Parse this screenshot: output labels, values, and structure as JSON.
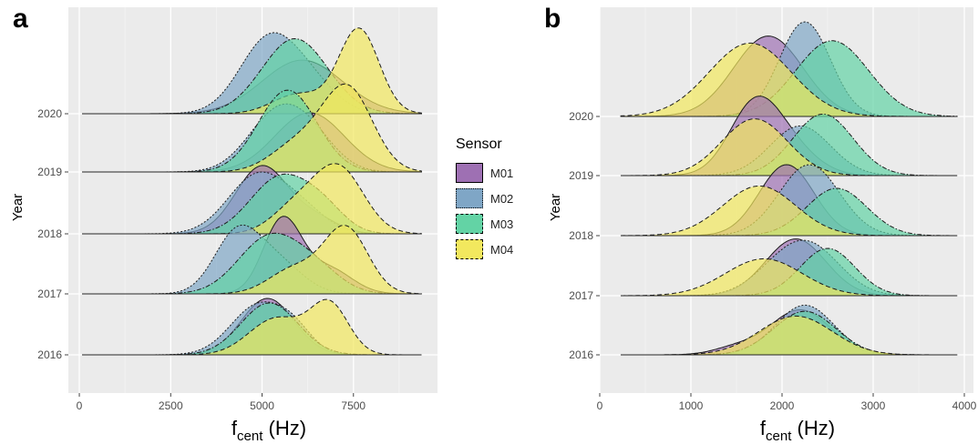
{
  "figure": {
    "panel_a_label": "a",
    "panel_b_label": "b"
  },
  "legend": {
    "title": "Sensor",
    "items": [
      {
        "label": "M01",
        "color": "#9E70B3",
        "dash": "solid"
      },
      {
        "label": "M02",
        "color": "#7FA6C6",
        "dash": "dotted"
      },
      {
        "label": "M03",
        "color": "#63D3A5",
        "dash": "dash-dot"
      },
      {
        "label": "M04",
        "color": "#F2E85E",
        "dash": "dashed"
      }
    ]
  },
  "chart_data": [
    {
      "type": "area",
      "subtype": "ridgeline",
      "panel": "a",
      "xlabel_main": "f",
      "xlabel_sub": "cent",
      "xlabel_unit": " (Hz)",
      "ylabel": "Year",
      "xlim": [
        -300,
        9800
      ],
      "xticks": [
        0,
        2500,
        5000,
        7500
      ],
      "years": [
        "2016",
        "2017",
        "2018",
        "2019",
        "2020"
      ],
      "grid": true,
      "colors": {
        "M01": "#9E70B3",
        "M02": "#7FA6C6",
        "M03": "#63D3A5",
        "M04": "#F2E85E"
      },
      "series": [
        {
          "year": "2016",
          "sensor": "M01",
          "peaks": [
            [
              5150,
              720,
              1
            ]
          ]
        },
        {
          "year": "2016",
          "sensor": "M02",
          "peaks": [
            [
              4900,
              750,
              0.88
            ],
            [
              5900,
              500,
              0.32
            ]
          ]
        },
        {
          "year": "2016",
          "sensor": "M03",
          "peaks": [
            [
              5200,
              780,
              0.92
            ]
          ]
        },
        {
          "year": "2016",
          "sensor": "M04",
          "peaks": [
            [
              6850,
              520,
              0.87
            ],
            [
              5400,
              750,
              0.65
            ]
          ]
        },
        {
          "year": "2017",
          "sensor": "M01",
          "peaks": [
            [
              5550,
              520,
              1.3
            ],
            [
              6800,
              650,
              0.45
            ]
          ]
        },
        {
          "year": "2017",
          "sensor": "M02",
          "peaks": [
            [
              4300,
              620,
              1.03
            ],
            [
              5400,
              700,
              0.55
            ]
          ]
        },
        {
          "year": "2017",
          "sensor": "M03",
          "peaks": [
            [
              5200,
              850,
              1.0
            ],
            [
              6500,
              700,
              0.35
            ]
          ]
        },
        {
          "year": "2017",
          "sensor": "M04",
          "peaks": [
            [
              7300,
              600,
              1.15
            ],
            [
              5900,
              700,
              0.45
            ]
          ]
        },
        {
          "year": "2018",
          "sensor": "M01",
          "peaks": [
            [
              5000,
              720,
              1.2
            ],
            [
              6500,
              600,
              0.25
            ]
          ]
        },
        {
          "year": "2018",
          "sensor": "M02",
          "peaks": [
            [
              4900,
              820,
              1.05
            ],
            [
              6200,
              650,
              0.3
            ]
          ]
        },
        {
          "year": "2018",
          "sensor": "M03",
          "peaks": [
            [
              5500,
              820,
              1.0
            ],
            [
              6700,
              600,
              0.35
            ]
          ]
        },
        {
          "year": "2018",
          "sensor": "M04",
          "peaks": [
            [
              7100,
              680,
              1.15
            ],
            [
              5900,
              650,
              0.45
            ]
          ]
        },
        {
          "year": "2019",
          "sensor": "M01",
          "peaks": [
            [
              6300,
              950,
              1.05
            ]
          ]
        },
        {
          "year": "2019",
          "sensor": "M02",
          "peaks": [
            [
              5400,
              800,
              1.0
            ],
            [
              6400,
              700,
              0.45
            ]
          ]
        },
        {
          "year": "2019",
          "sensor": "M03",
          "peaks": [
            [
              5700,
              800,
              1.45
            ]
          ]
        },
        {
          "year": "2019",
          "sensor": "M04",
          "peaks": [
            [
              7350,
              680,
              1.45
            ],
            [
              6000,
              750,
              0.5
            ]
          ]
        },
        {
          "year": "2020",
          "sensor": "M01",
          "peaks": [
            [
              6100,
              1100,
              0.95
            ]
          ]
        },
        {
          "year": "2020",
          "sensor": "M02",
          "peaks": [
            [
              5200,
              800,
              1.33
            ],
            [
              6400,
              700,
              0.4
            ]
          ]
        },
        {
          "year": "2020",
          "sensor": "M03",
          "peaks": [
            [
              5900,
              900,
              1.33
            ]
          ]
        },
        {
          "year": "2020",
          "sensor": "M04",
          "peaks": [
            [
              7650,
              550,
              1.5
            ],
            [
              6000,
              700,
              0.35
            ]
          ]
        }
      ]
    },
    {
      "type": "area",
      "subtype": "ridgeline",
      "panel": "b",
      "xlabel_main": "f",
      "xlabel_sub": "cent",
      "xlabel_unit": " (Hz)",
      "ylabel": "Year",
      "xlim": [
        0,
        4100
      ],
      "xticks": [
        0,
        1000,
        2000,
        3000,
        4000
      ],
      "years": [
        "2016",
        "2017",
        "2018",
        "2019",
        "2020"
      ],
      "grid": true,
      "colors": {
        "M01": "#9E70B3",
        "M02": "#7FA6C6",
        "M03": "#63D3A5",
        "M04": "#F2E85E"
      },
      "series": [
        {
          "year": "2016",
          "sensor": "M01",
          "peaks": [
            [
              2200,
              330,
              0.95
            ],
            [
              1500,
              250,
              0.15
            ]
          ]
        },
        {
          "year": "2016",
          "sensor": "M02",
          "peaks": [
            [
              2250,
              320,
              1.05
            ]
          ]
        },
        {
          "year": "2016",
          "sensor": "M03",
          "peaks": [
            [
              2250,
              340,
              0.92
            ]
          ]
        },
        {
          "year": "2016",
          "sensor": "M04",
          "peaks": [
            [
              2150,
              400,
              0.82
            ]
          ]
        },
        {
          "year": "2017",
          "sensor": "M01",
          "peaks": [
            [
              2150,
              330,
              1.2
            ]
          ]
        },
        {
          "year": "2017",
          "sensor": "M02",
          "peaks": [
            [
              2300,
              340,
              1.03
            ],
            [
              1900,
              300,
              0.3
            ]
          ]
        },
        {
          "year": "2017",
          "sensor": "M03",
          "peaks": [
            [
              2500,
              300,
              1.0
            ]
          ]
        },
        {
          "year": "2017",
          "sensor": "M04",
          "peaks": [
            [
              1800,
              420,
              0.78
            ]
          ]
        },
        {
          "year": "2018",
          "sensor": "M01",
          "peaks": [
            [
              2050,
              300,
              1.5
            ]
          ]
        },
        {
          "year": "2018",
          "sensor": "M02",
          "peaks": [
            [
              2300,
              330,
              1.5
            ]
          ]
        },
        {
          "year": "2018",
          "sensor": "M03",
          "peaks": [
            [
              2600,
              330,
              1.0
            ]
          ]
        },
        {
          "year": "2018",
          "sensor": "M04",
          "peaks": [
            [
              1750,
              400,
              1.05
            ]
          ]
        },
        {
          "year": "2019",
          "sensor": "M01",
          "peaks": [
            [
              1700,
              280,
              1.45
            ],
            [
              2100,
              300,
              0.5
            ]
          ]
        },
        {
          "year": "2019",
          "sensor": "M02",
          "peaks": [
            [
              2200,
              330,
              1.05
            ]
          ]
        },
        {
          "year": "2019",
          "sensor": "M03",
          "peaks": [
            [
              2450,
              330,
              1.3
            ]
          ]
        },
        {
          "year": "2019",
          "sensor": "M04",
          "peaks": [
            [
              1700,
              360,
              1.2
            ]
          ]
        },
        {
          "year": "2020",
          "sensor": "M01",
          "peaks": [
            [
              1850,
              380,
              1.7
            ]
          ]
        },
        {
          "year": "2020",
          "sensor": "M02",
          "peaks": [
            [
              2250,
              280,
              2.0
            ]
          ]
        },
        {
          "year": "2020",
          "sensor": "M03",
          "peaks": [
            [
              2550,
              400,
              1.6
            ]
          ]
        },
        {
          "year": "2020",
          "sensor": "M04",
          "peaks": [
            [
              1650,
              450,
              1.55
            ]
          ]
        }
      ]
    }
  ]
}
